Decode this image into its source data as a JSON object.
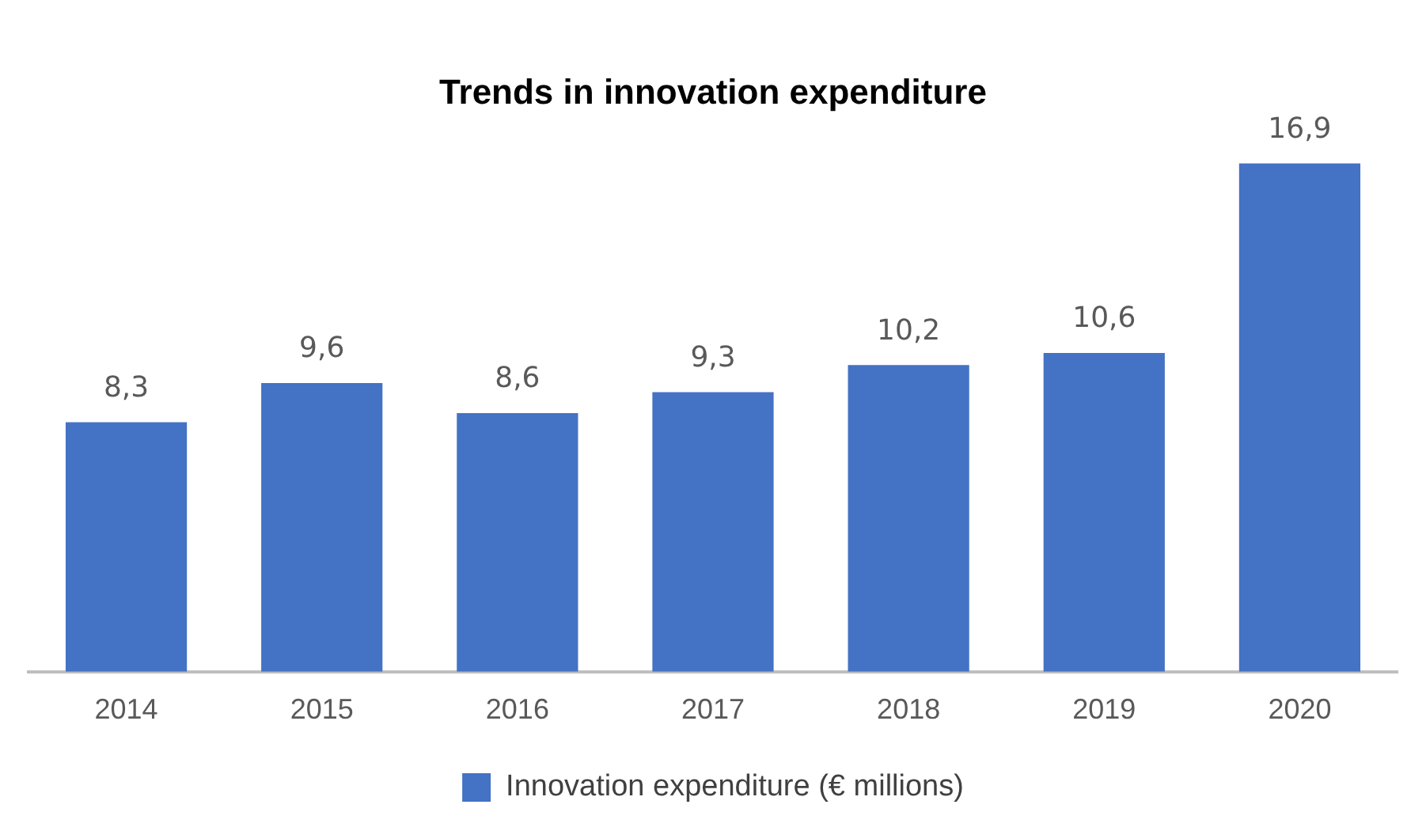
{
  "chart_data": {
    "type": "bar",
    "title": "Trends in innovation expenditure",
    "categories": [
      "2014",
      "2015",
      "2016",
      "2017",
      "2018",
      "2019",
      "2020"
    ],
    "series": [
      {
        "name": "Innovation expenditure (€ millions)",
        "color": "#4472c4",
        "values": [
          8.3,
          9.6,
          8.6,
          9.3,
          10.2,
          10.6,
          16.9
        ],
        "value_labels": [
          "8,3",
          "9,6",
          "8,6",
          "9,3",
          "10,2",
          "10,6",
          "16,9"
        ]
      }
    ],
    "grid": false,
    "legend": "bottom"
  }
}
